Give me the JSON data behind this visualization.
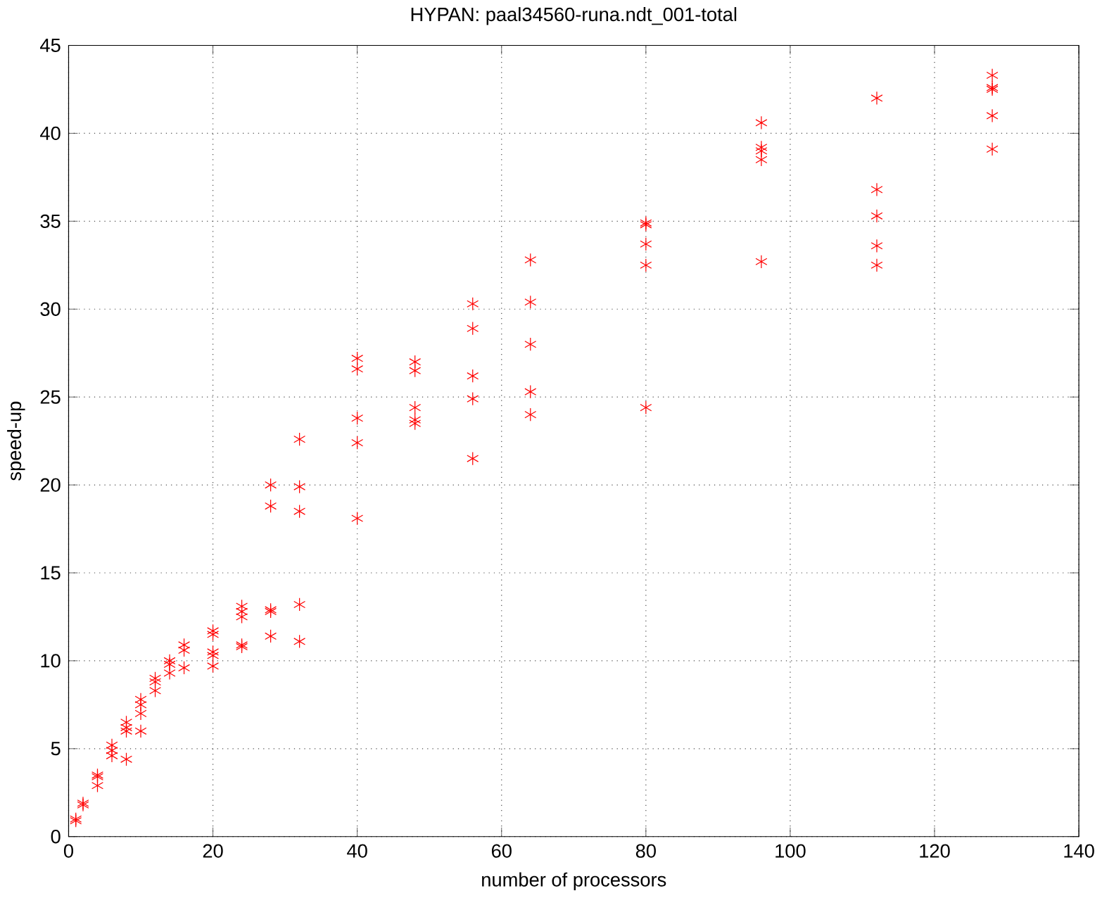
{
  "chart_data": {
    "type": "scatter",
    "title": "HYPAN: paal34560-runa.ndt_001-total",
    "xlabel": "number of processors",
    "ylabel": "speed-up",
    "x": [
      1,
      1,
      2,
      2,
      4,
      4,
      4,
      6,
      6,
      6,
      8,
      8,
      8,
      8,
      10,
      10,
      10,
      10,
      12,
      12,
      12,
      14,
      14,
      14,
      16,
      16,
      16,
      20,
      20,
      20,
      20,
      20,
      24,
      24,
      24,
      24,
      24,
      28,
      28,
      28,
      28,
      28,
      32,
      32,
      32,
      32,
      32,
      40,
      40,
      40,
      40,
      40,
      48,
      48,
      48,
      48,
      48,
      56,
      56,
      56,
      56,
      56,
      64,
      64,
      64,
      64,
      64,
      80,
      80,
      80,
      80,
      80,
      96,
      96,
      96,
      96,
      96,
      112,
      112,
      112,
      112,
      112,
      128,
      128,
      128,
      128,
      128
    ],
    "series": [
      {
        "color": "#ff0000",
        "values": [
          0.9,
          1.0,
          1.8,
          1.9,
          3.5,
          3.4,
          2.9,
          5.2,
          4.9,
          4.6,
          6.5,
          6.2,
          6.0,
          4.4,
          7.8,
          7.5,
          7.0,
          6.0,
          9.0,
          8.8,
          8.3,
          10.0,
          9.8,
          9.3,
          10.9,
          10.6,
          9.6,
          11.7,
          11.5,
          10.5,
          10.3,
          9.7,
          13.1,
          12.8,
          12.5,
          10.9,
          10.8,
          12.9,
          12.8,
          11.4,
          20.0,
          18.8,
          13.2,
          11.1,
          22.6,
          19.9,
          18.5,
          27.2,
          26.6,
          23.8,
          22.4,
          18.1,
          27.0,
          26.5,
          24.4,
          23.7,
          23.5,
          30.3,
          28.9,
          26.2,
          24.9,
          21.5,
          32.8,
          30.4,
          28.0,
          25.3,
          24.0,
          34.9,
          34.8,
          33.7,
          32.5,
          24.4,
          40.6,
          39.2,
          39.0,
          38.5,
          32.7,
          42.0,
          36.8,
          35.3,
          33.6,
          32.5,
          43.3,
          42.6,
          42.5,
          41.0,
          39.1
        ]
      }
    ],
    "xlim": [
      0,
      140
    ],
    "ylim": [
      0,
      45
    ],
    "xticks": [
      0,
      20,
      40,
      60,
      80,
      100,
      120,
      140
    ],
    "yticks": [
      0,
      5,
      10,
      15,
      20,
      25,
      30,
      35,
      40,
      45
    ],
    "grid": true,
    "marker": "cross"
  }
}
